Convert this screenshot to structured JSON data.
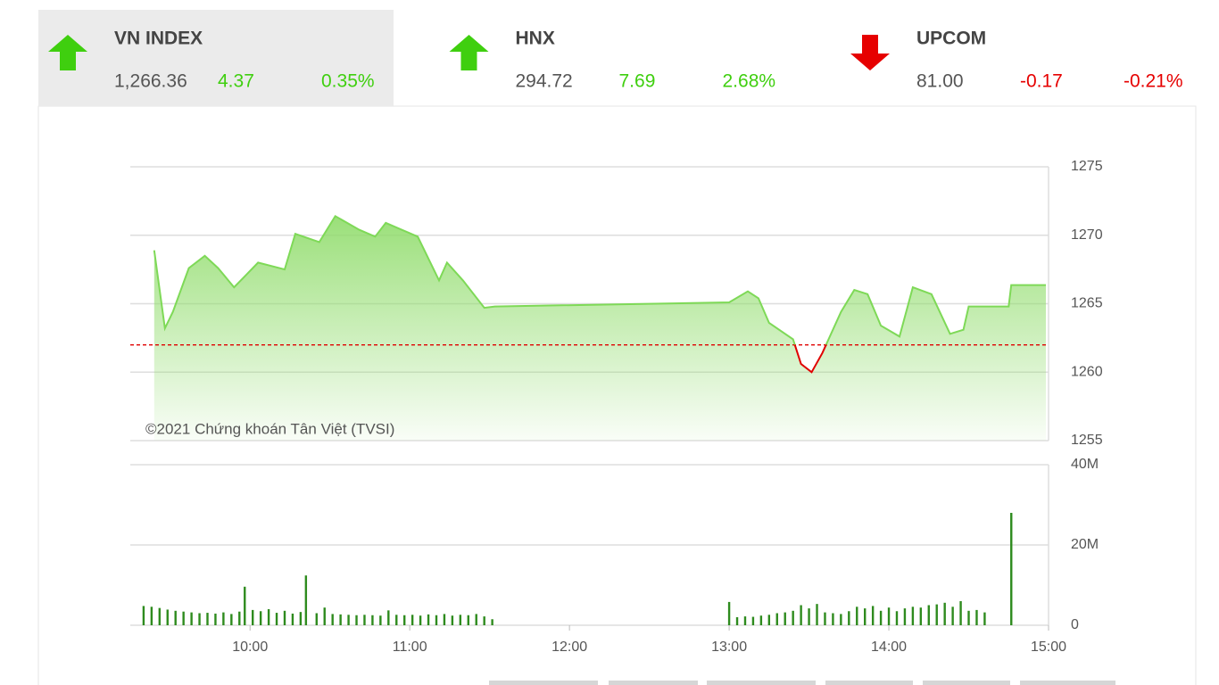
{
  "indices": [
    {
      "name": "VN INDEX",
      "value": "1,266.36",
      "change": "4.37",
      "percent": "0.35%",
      "direction": "up"
    },
    {
      "name": "HNX",
      "value": "294.72",
      "change": "7.69",
      "percent": "2.68%",
      "direction": "up"
    },
    {
      "name": "UPCOM",
      "value": "81.00",
      "change": "-0.17",
      "percent": "-0.21%",
      "direction": "down"
    }
  ],
  "chart_data": [
    {
      "type": "line",
      "watermark": "©2021 Chứng khoán Tân Việt (TVSI)",
      "x": [
        "09:24",
        "09:28",
        "09:31",
        "09:37",
        "09:43",
        "09:48",
        "09:54",
        "09:58",
        "10:03",
        "10:13",
        "10:17",
        "10:26",
        "10:32",
        "10:41",
        "10:47",
        "10:51",
        "11:03",
        "11:11",
        "11:14",
        "11:20",
        "11:28",
        "11:32",
        "13:00",
        "13:07",
        "13:11",
        "13:15",
        "13:24",
        "13:27",
        "13:31",
        "13:35",
        "13:42",
        "13:47",
        "13:52",
        "13:57",
        "14:04",
        "14:09",
        "14:16",
        "14:23",
        "14:28",
        "14:30",
        "14:45",
        "14:46",
        "14:59"
      ],
      "values": [
        1268.9,
        1263.2,
        1264.4,
        1267.6,
        1268.5,
        1267.6,
        1266.2,
        1267.0,
        1268.0,
        1267.5,
        1270.1,
        1269.5,
        1271.4,
        1270.4,
        1269.9,
        1270.9,
        1269.9,
        1266.7,
        1268.0,
        1266.7,
        1264.7,
        1264.8,
        1265.1,
        1265.9,
        1265.4,
        1263.6,
        1262.4,
        1260.6,
        1260.0,
        1261.4,
        1264.4,
        1266.0,
        1265.7,
        1263.4,
        1262.6,
        1266.2,
        1265.7,
        1262.8,
        1263.1,
        1264.8,
        1264.8,
        1266.36,
        1266.36
      ],
      "reference": 1261.99,
      "color_up": "#7ed957",
      "color_down": "#e00000",
      "reference_color": "#e00000",
      "xlim": [
        "09:15",
        "15:00"
      ],
      "ylim": [
        1255,
        1275
      ],
      "yticks": [
        1255,
        1260,
        1265,
        1270,
        1275
      ],
      "grid": true
    },
    {
      "type": "bar",
      "color": "#2e8b1e",
      "x": [
        "09:20",
        "09:23",
        "09:26",
        "09:29",
        "09:32",
        "09:35",
        "09:38",
        "09:41",
        "09:44",
        "09:47",
        "09:50",
        "09:53",
        "09:56",
        "09:58",
        "10:01",
        "10:04",
        "10:07",
        "10:10",
        "10:13",
        "10:16",
        "10:19",
        "10:21",
        "10:25",
        "10:28",
        "10:31",
        "10:34",
        "10:37",
        "10:40",
        "10:43",
        "10:46",
        "10:49",
        "10:52",
        "10:55",
        "10:58",
        "11:01",
        "11:04",
        "11:07",
        "11:10",
        "11:13",
        "11:16",
        "11:19",
        "11:22",
        "11:25",
        "11:28",
        "11:31",
        "13:00",
        "13:03",
        "13:06",
        "13:09",
        "13:12",
        "13:15",
        "13:18",
        "13:21",
        "13:24",
        "13:27",
        "13:30",
        "13:33",
        "13:36",
        "13:39",
        "13:42",
        "13:45",
        "13:48",
        "13:51",
        "13:54",
        "13:57",
        "14:00",
        "14:03",
        "14:06",
        "14:09",
        "14:12",
        "14:15",
        "14:18",
        "14:21",
        "14:24",
        "14:27",
        "14:30",
        "14:33",
        "14:36",
        "14:46"
      ],
      "values": [
        4800000,
        4600000,
        4300000,
        3900000,
        3600000,
        3400000,
        3200000,
        3000000,
        3100000,
        2900000,
        3200000,
        2800000,
        3400000,
        9600000,
        3800000,
        3500000,
        4000000,
        3100000,
        3600000,
        2900000,
        3300000,
        12400000,
        3000000,
        4400000,
        2800000,
        2700000,
        2600000,
        2500000,
        2600000,
        2500000,
        2400000,
        3700000,
        2600000,
        2500000,
        2600000,
        2400000,
        2700000,
        2500000,
        2800000,
        2400000,
        2600000,
        2500000,
        2800000,
        2200000,
        1500000,
        5800000,
        2000000,
        2200000,
        2100000,
        2400000,
        2600000,
        3000000,
        3200000,
        3600000,
        5000000,
        4200000,
        5300000,
        3200000,
        3000000,
        2800000,
        3500000,
        4600000,
        4200000,
        4800000,
        3600000,
        4400000,
        3500000,
        4200000,
        4600000,
        4400000,
        5000000,
        5200000,
        5600000,
        4600000,
        6000000,
        3600000,
        3800000,
        3200000,
        28000000
      ],
      "xlim": [
        "09:15",
        "15:00"
      ],
      "xticks": [
        "10:00",
        "11:00",
        "12:00",
        "13:00",
        "14:00",
        "15:00"
      ],
      "ylim": [
        0,
        40000000
      ],
      "yticks": [
        {
          "value": 0,
          "label": "0"
        },
        {
          "value": 20000000,
          "label": "20M"
        },
        {
          "value": 40000000,
          "label": "40M"
        }
      ],
      "grid": true
    }
  ]
}
